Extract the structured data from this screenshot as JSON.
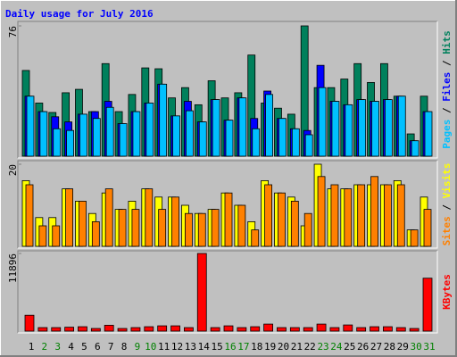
{
  "chart_data": [
    {
      "type": "bar",
      "title": "Daily usage for July 2016",
      "legend_separator": " / ",
      "ylim": [
        0,
        76
      ],
      "yticks": [
        76
      ],
      "series": [
        {
          "name": "Hits",
          "color": "#00805c",
          "values": [
            50,
            31,
            25.5,
            37,
            39,
            26,
            54,
            26,
            36,
            51.5,
            51,
            34,
            40,
            30,
            44,
            34,
            37,
            59,
            31,
            28,
            24.5,
            76,
            40,
            40,
            45,
            54,
            43,
            54,
            35,
            13,
            35
          ]
        },
        {
          "name": "Files",
          "color": "#0000ff",
          "values": [
            35,
            26,
            23,
            20,
            24.5,
            26,
            32,
            19,
            26,
            31,
            42,
            23.5,
            32,
            20,
            33,
            21,
            34,
            22,
            38,
            22,
            16,
            15,
            53,
            32,
            30,
            33,
            32,
            33,
            35,
            9,
            26
          ]
        },
        {
          "name": "Pages",
          "color": "#00c0ff",
          "values": [
            35,
            26,
            16,
            15,
            24.5,
            22,
            28.5,
            19,
            26,
            31,
            42,
            23.5,
            26.5,
            20,
            33,
            21,
            34,
            16,
            36,
            22,
            16,
            12.5,
            40,
            32,
            30,
            33,
            32,
            33,
            35,
            9,
            26
          ]
        }
      ]
    },
    {
      "type": "bar",
      "legend_separator": " / ",
      "ylim": [
        0,
        20
      ],
      "yticks": [
        20
      ],
      "series": [
        {
          "name": "Visits",
          "color": "#ffff00",
          "values": [
            16,
            7,
            7,
            14,
            11,
            8,
            13,
            9,
            11,
            14,
            12,
            12,
            10,
            8,
            9,
            13,
            10,
            6,
            16,
            13,
            12,
            5,
            20,
            14,
            14,
            15,
            15,
            15,
            16,
            4,
            12
          ]
        },
        {
          "name": "Sites",
          "color": "#ff8000",
          "values": [
            15,
            5,
            5,
            14,
            11,
            6,
            14,
            9,
            9,
            14,
            9,
            12,
            8,
            8,
            9,
            13,
            10,
            4,
            15,
            13,
            11,
            8,
            17,
            15,
            14,
            15,
            17,
            15,
            15,
            4,
            9
          ]
        }
      ]
    },
    {
      "type": "bar",
      "ylim": [
        0,
        11896
      ],
      "yticks": [
        11896
      ],
      "categories": [
        "1",
        "2",
        "3",
        "4",
        "5",
        "6",
        "7",
        "8",
        "9",
        "10",
        "11",
        "12",
        "13",
        "14",
        "15",
        "16",
        "17",
        "18",
        "19",
        "20",
        "21",
        "22",
        "23",
        "24",
        "25",
        "26",
        "27",
        "28",
        "29",
        "30",
        "31"
      ],
      "category_colors": [
        "#000000",
        "#008000",
        "#008000",
        "#000000",
        "#000000",
        "#000000",
        "#000000",
        "#000000",
        "#008000",
        "#008000",
        "#000000",
        "#000000",
        "#000000",
        "#000000",
        "#000000",
        "#008000",
        "#008000",
        "#000000",
        "#000000",
        "#000000",
        "#000000",
        "#000000",
        "#008000",
        "#008000",
        "#000000",
        "#000000",
        "#000000",
        "#000000",
        "#000000",
        "#008000",
        "#008000"
      ],
      "series": [
        {
          "name": "KBytes",
          "color": "#ff0000",
          "values": [
            2433,
            540,
            540,
            600,
            676,
            405,
            900,
            405,
            540,
            676,
            811,
            811,
            540,
            11896,
            540,
            811,
            540,
            676,
            1081,
            540,
            540,
            540,
            1081,
            540,
            946,
            540,
            676,
            676,
            540,
            405,
            8111
          ]
        }
      ]
    }
  ]
}
